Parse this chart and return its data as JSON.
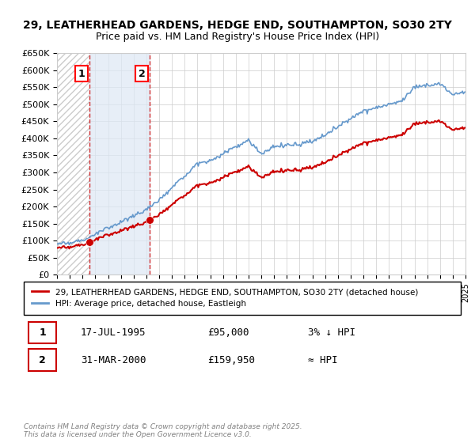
{
  "title": "29, LEATHERHEAD GARDENS, HEDGE END, SOUTHAMPTON, SO30 2TY",
  "subtitle": "Price paid vs. HM Land Registry's House Price Index (HPI)",
  "ylim": [
    0,
    650000
  ],
  "yticks": [
    0,
    50000,
    100000,
    150000,
    200000,
    250000,
    300000,
    350000,
    400000,
    450000,
    500000,
    550000,
    600000,
    650000
  ],
  "ytick_labels": [
    "£0",
    "£50K",
    "£100K",
    "£150K",
    "£200K",
    "£250K",
    "£300K",
    "£350K",
    "£400K",
    "£450K",
    "£500K",
    "£550K",
    "£600K",
    "£650K"
  ],
  "hpi_color": "#6699cc",
  "price_color": "#cc0000",
  "sale1_date": 1995.54,
  "sale1_price": 95000,
  "sale2_date": 2000.25,
  "sale2_price": 159950,
  "legend_label1": "29, LEATHERHEAD GARDENS, HEDGE END, SOUTHAMPTON, SO30 2TY (detached house)",
  "legend_label2": "HPI: Average price, detached house, Eastleigh",
  "table_row1": [
    "1",
    "17-JUL-1995",
    "£95,000",
    "3% ↓ HPI"
  ],
  "table_row2": [
    "2",
    "31-MAR-2000",
    "£159,950",
    "≈ HPI"
  ],
  "footnote": "Contains HM Land Registry data © Crown copyright and database right 2025.\nThis data is licensed under the Open Government Licence v3.0.",
  "bg_color": "#ffffff",
  "grid_color": "#cccccc",
  "hatch_color": "#cccccc"
}
